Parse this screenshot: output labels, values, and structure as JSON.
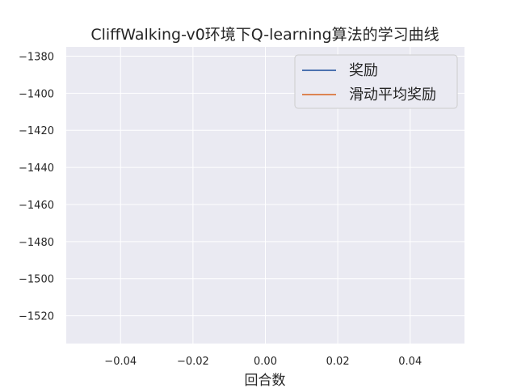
{
  "chart_data": {
    "type": "line",
    "title": "CliffWalking-v0环境下Q-learning算法的学习曲线",
    "xlabel": "回合数",
    "ylabel": "",
    "x": [],
    "series": [
      {
        "name": "奖励",
        "color": "#4c72b0",
        "values": []
      },
      {
        "name": "滑动平均奖励",
        "color": "#dd8452",
        "values": []
      }
    ],
    "xlim": [
      -0.055,
      0.055
    ],
    "ylim": [
      -1535,
      -1375
    ],
    "xticks": [
      -0.04,
      -0.02,
      0.0,
      0.02,
      0.04
    ],
    "xtick_labels": [
      "−0.04",
      "−0.02",
      "0.00",
      "0.02",
      "0.04"
    ],
    "yticks": [
      -1380,
      -1400,
      -1420,
      -1440,
      -1460,
      -1480,
      -1500,
      -1520
    ],
    "ytick_labels": [
      "−1380",
      "−1400",
      "−1420",
      "−1440",
      "−1460",
      "−1480",
      "−1500",
      "−1520"
    ],
    "grid": true,
    "legend_position": "top-right",
    "background_color": "#eaeaf2",
    "grid_color": "#ffffff"
  }
}
